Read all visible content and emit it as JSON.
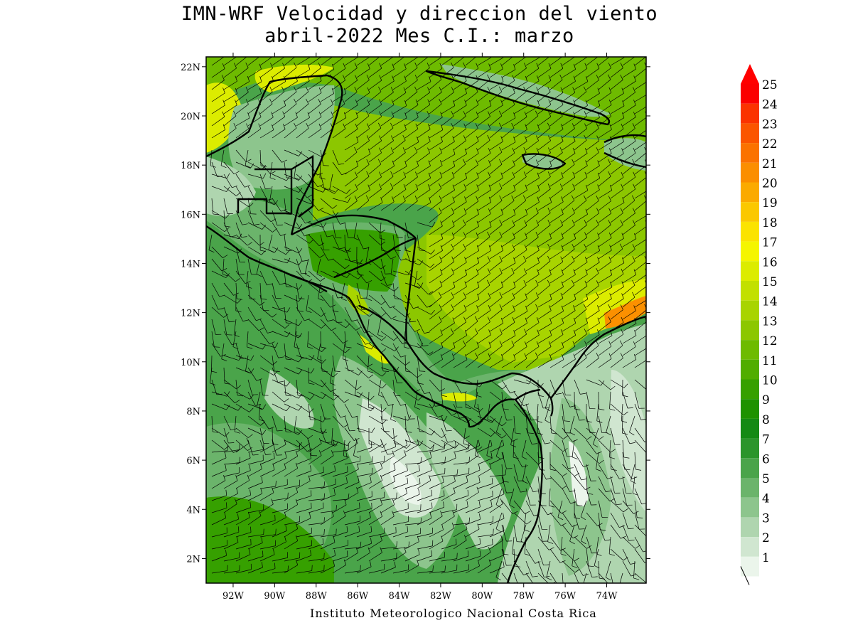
{
  "figure": {
    "title_line1": "IMN-WRF Velocidad y direccion del viento",
    "title_line2": "abril-2022 Mes C.I.: marzo",
    "credit": "Instituto Meteorologico Nacional Costa Rica"
  },
  "axes": {
    "lat_labels": [
      "22N",
      "20N",
      "18N",
      "16N",
      "14N",
      "12N",
      "10N",
      "8N",
      "6N",
      "4N",
      "2N"
    ],
    "lat_values": [
      22,
      20,
      18,
      16,
      14,
      12,
      10,
      8,
      6,
      4,
      2
    ],
    "lon_labels": [
      "92W",
      "90W",
      "88W",
      "86W",
      "84W",
      "82W",
      "80W",
      "78W",
      "76W",
      "74W"
    ],
    "lon_values": [
      -92,
      -90,
      -88,
      -86,
      -84,
      -82,
      -80,
      -78,
      -76,
      -74
    ],
    "lat_range": [
      1,
      22.4
    ],
    "lon_range": [
      -93.3,
      -72.1
    ]
  },
  "colorbar": {
    "levels": [
      "25",
      "24",
      "23",
      "22",
      "21",
      "20",
      "19",
      "18",
      "17",
      "16",
      "15",
      "14",
      "13",
      "12",
      "11",
      "10",
      "9",
      "8",
      "7",
      "6",
      "5",
      "4",
      "3",
      "2",
      "1"
    ],
    "colors": [
      "#fb0000",
      "#fb3300",
      "#fb5500",
      "#fb7200",
      "#fb8e00",
      "#fbaa00",
      "#fbc800",
      "#fbe300",
      "#f5f500",
      "#dcec00",
      "#c2e000",
      "#a8d400",
      "#8cc700",
      "#6ebb00",
      "#50ad00",
      "#36a000",
      "#1e9200",
      "#148a14",
      "#2b952b",
      "#4aa44a",
      "#6bb46b",
      "#8dc58d",
      "#afd5af",
      "#d0e6d0",
      "#ebf5eb"
    ],
    "arrow_color": "#ff0000"
  },
  "colors": {
    "ocean_base": "#4aa44a",
    "carib_band": "#8cc700",
    "yucatan_high": "#dcec00",
    "land_low": "#afd5af",
    "coast_line": "#000000"
  }
}
